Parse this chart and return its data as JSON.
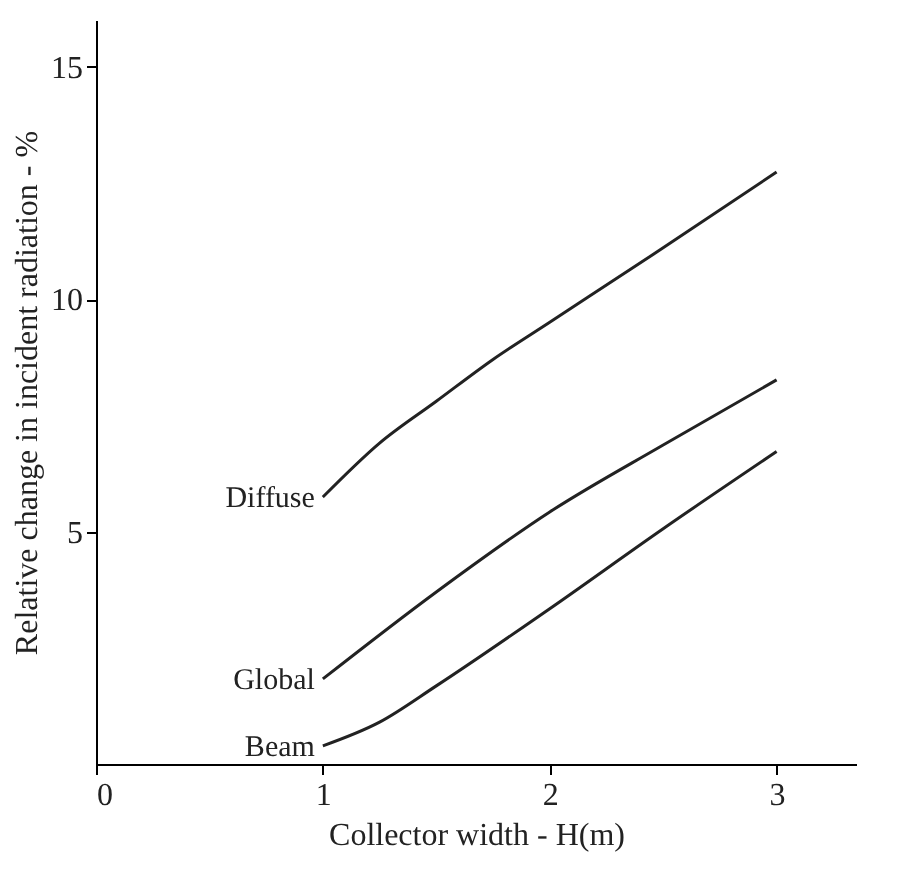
{
  "chart_data": {
    "type": "line",
    "xlabel": "Collector width - H(m)",
    "ylabel": "Relative change in incident radiation - %",
    "xlim": [
      0,
      3.35
    ],
    "ylim": [
      0,
      16
    ],
    "xticks": [
      0,
      1,
      2,
      3
    ],
    "yticks": [
      5,
      10,
      15
    ],
    "grid": false,
    "legend": false,
    "line_style": "solid",
    "marker": "none",
    "series": [
      {
        "name": "Diffuse",
        "color": "#222222",
        "x": [
          1,
          1.25,
          1.5,
          1.75,
          2,
          2.5,
          3
        ],
        "values": [
          5.74,
          6.9,
          7.8,
          8.7,
          9.5,
          11.1,
          12.73
        ]
      },
      {
        "name": "Global",
        "color": "#222222",
        "x": [
          1,
          1.5,
          2,
          2.5,
          3
        ],
        "values": [
          1.83,
          3.7,
          5.42,
          6.86,
          8.26
        ]
      },
      {
        "name": "Beam",
        "color": "#222222",
        "x": [
          1,
          1.25,
          1.5,
          2,
          2.5,
          3
        ],
        "values": [
          0.39,
          0.9,
          1.68,
          3.34,
          5.06,
          6.72
        ]
      }
    ]
  }
}
